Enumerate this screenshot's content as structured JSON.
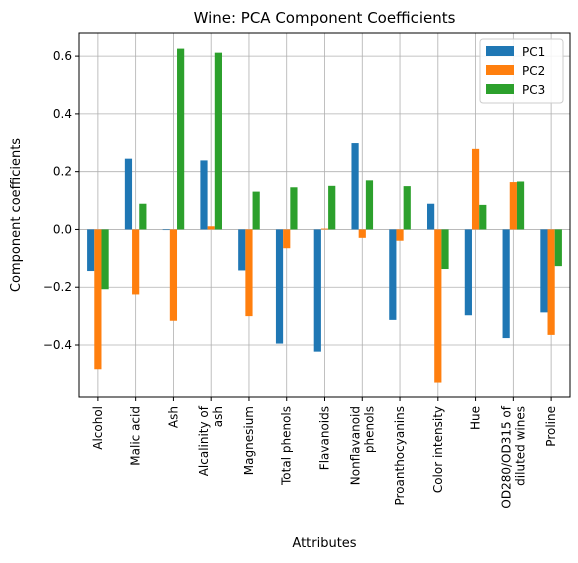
{
  "chart_data": {
    "type": "bar",
    "title": "Wine: PCA Component Coefficients",
    "xlabel": "Attributes",
    "ylabel": "Component coefficients",
    "ylim": [
      -0.58,
      0.68
    ],
    "yticks": [
      -0.4,
      -0.2,
      0.0,
      0.2,
      0.4,
      0.6
    ],
    "ytick_labels": [
      "−0.4",
      "−0.2",
      "0.0",
      "0.2",
      "0.4",
      "0.6"
    ],
    "grid": true,
    "legend_position": "top-right",
    "categories": [
      "Alcohol",
      "Malic acid",
      "Ash",
      "Alcalinity of\nash",
      "Magnesium",
      "Total phenols",
      "Flavanoids",
      "Nonflavanoid\nphenols",
      "Proanthocyanins",
      "Color intensity",
      "Hue",
      "OD280/OD315 of\ndiluted wines",
      "Proline"
    ],
    "series": [
      {
        "name": "PC1",
        "color": "#1f77b4",
        "values": [
          -0.144,
          0.245,
          -0.002,
          0.239,
          -0.142,
          -0.395,
          -0.423,
          0.299,
          -0.313,
          0.089,
          -0.297,
          -0.376,
          -0.287
        ]
      },
      {
        "name": "PC2",
        "color": "#ff7f0e",
        "values": [
          -0.484,
          -0.225,
          -0.316,
          0.011,
          -0.3,
          -0.065,
          0.003,
          -0.029,
          -0.039,
          -0.53,
          0.279,
          0.164,
          -0.365
        ]
      },
      {
        "name": "PC3",
        "color": "#2ca02c",
        "values": [
          -0.207,
          0.089,
          0.626,
          0.612,
          0.131,
          0.146,
          0.151,
          0.17,
          0.15,
          -0.137,
          0.085,
          0.166,
          -0.127
        ]
      }
    ]
  }
}
